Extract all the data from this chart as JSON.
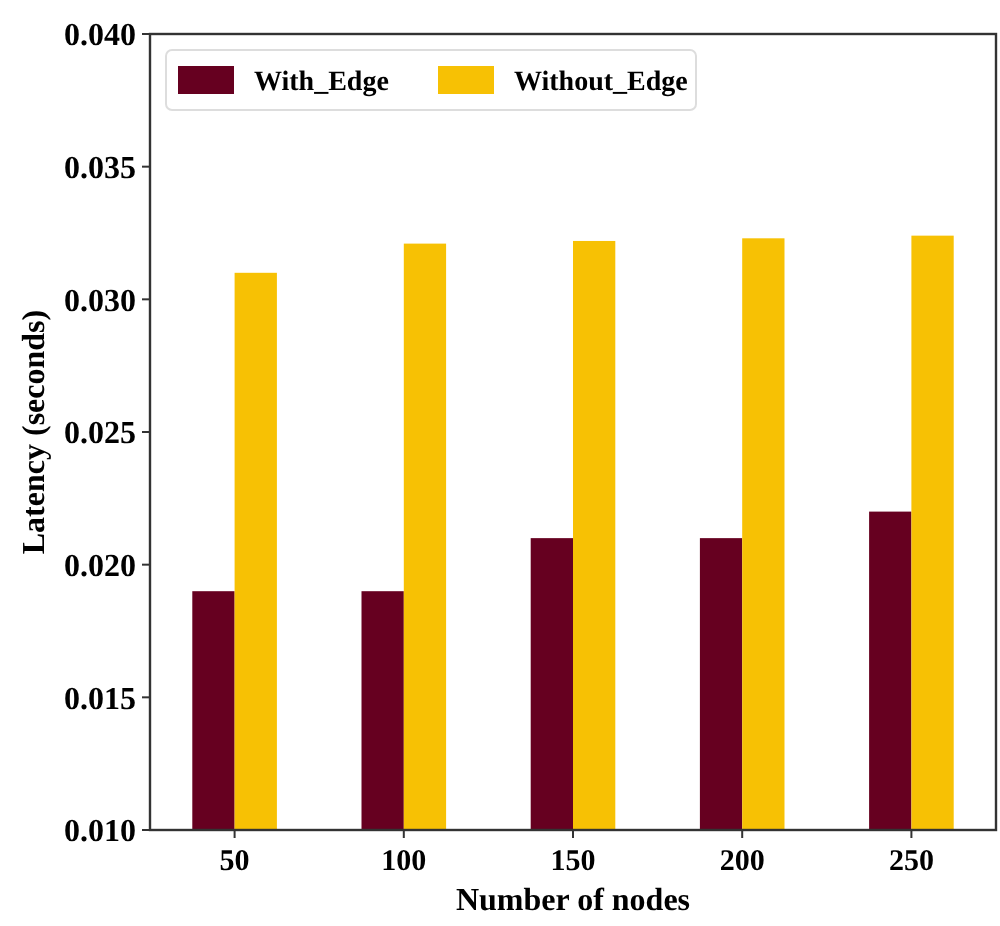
{
  "chart_data": {
    "type": "bar",
    "xlabel": "Number of nodes",
    "ylabel": "Latency (seconds)",
    "categories": [
      "50",
      "100",
      "150",
      "200",
      "250"
    ],
    "series": [
      {
        "name": "With_Edge",
        "color": "#660020",
        "values": [
          0.019,
          0.019,
          0.021,
          0.021,
          0.022
        ]
      },
      {
        "name": "Without_Edge",
        "color": "#f7c104",
        "values": [
          0.031,
          0.0321,
          0.0322,
          0.0323,
          0.0324
        ]
      }
    ],
    "ylim": [
      0.01,
      0.04
    ],
    "yticks": [
      {
        "value": 0.01,
        "label": "0.010"
      },
      {
        "value": 0.015,
        "label": "0.015"
      },
      {
        "value": 0.02,
        "label": "0.020"
      },
      {
        "value": 0.025,
        "label": "0.025"
      },
      {
        "value": 0.03,
        "label": "0.030"
      },
      {
        "value": 0.035,
        "label": "0.035"
      },
      {
        "value": 0.04,
        "label": "0.040"
      }
    ],
    "legend": "top left",
    "grid": false
  }
}
